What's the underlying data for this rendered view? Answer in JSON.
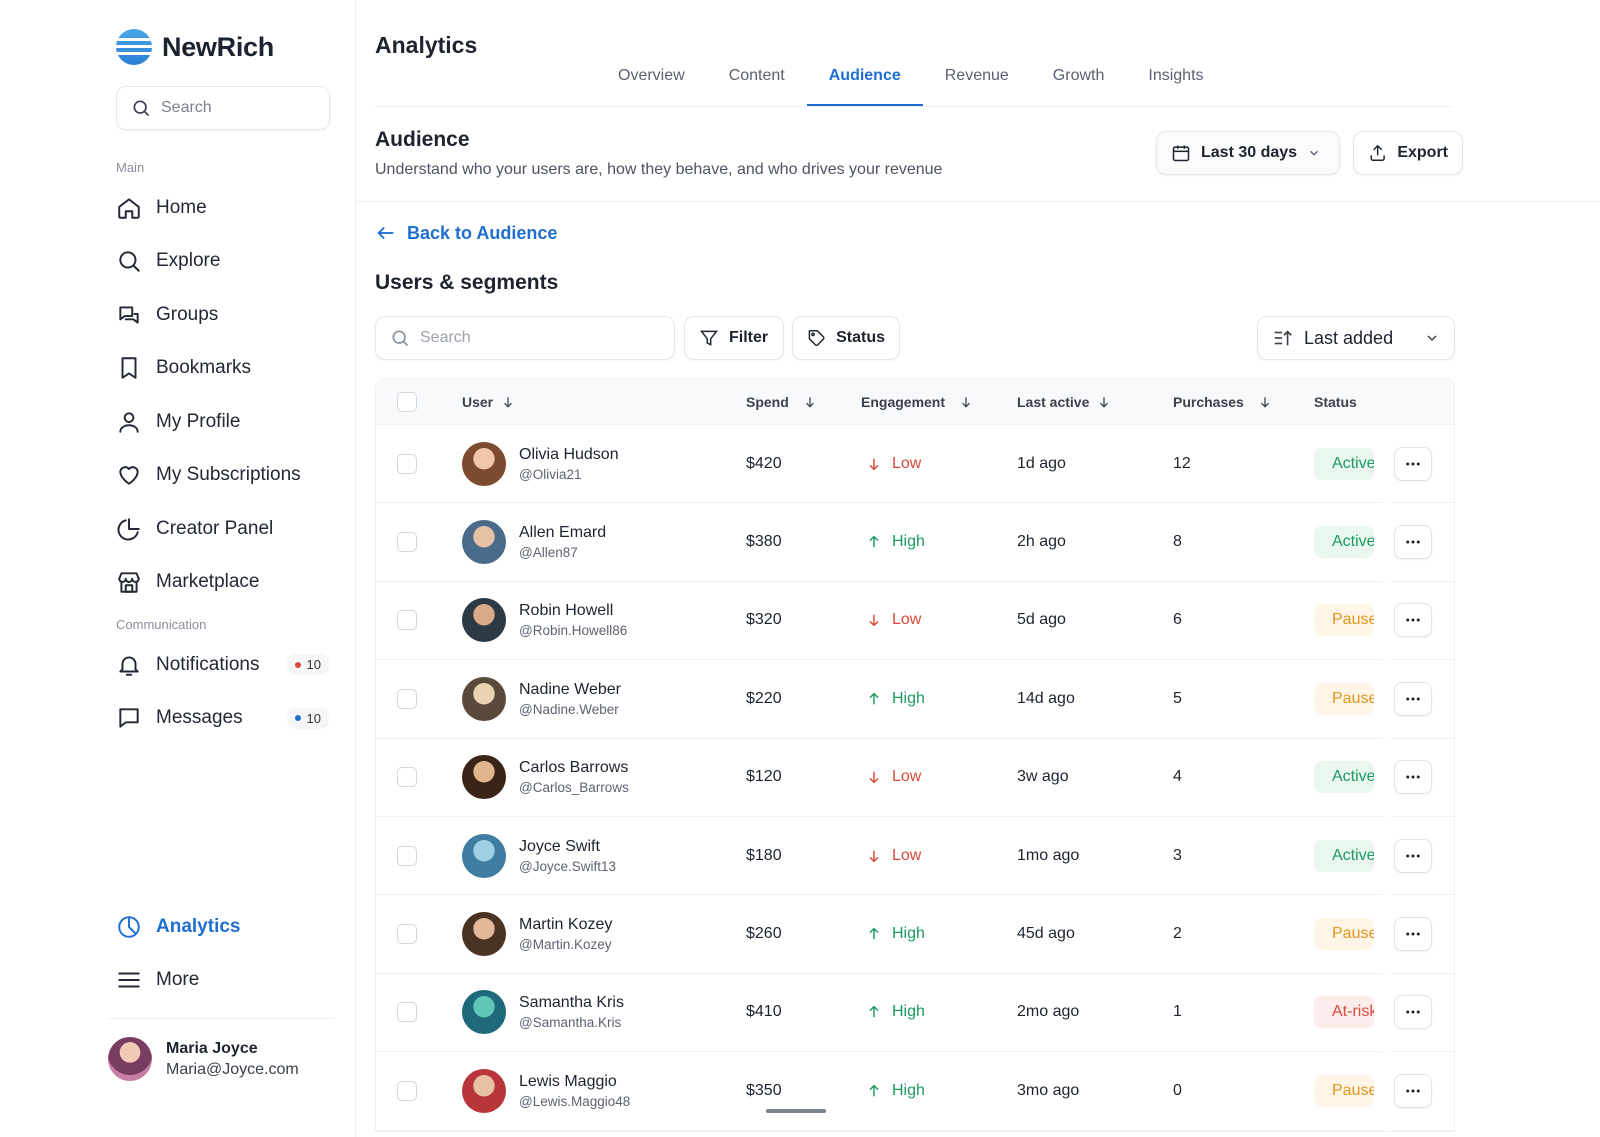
{
  "brand": {
    "name": "NewRich"
  },
  "sidebar": {
    "search_placeholder": "Search",
    "main_label": "Main",
    "main_items": [
      {
        "label": "Home",
        "icon": "home-icon"
      },
      {
        "label": "Explore",
        "icon": "search-icon"
      },
      {
        "label": "Groups",
        "icon": "chat-bubbles-icon"
      },
      {
        "label": "Bookmarks",
        "icon": "bookmark-icon"
      },
      {
        "label": "My Profile",
        "icon": "user-icon"
      },
      {
        "label": "My Subscriptions",
        "icon": "heart-icon"
      },
      {
        "label": "Creator Panel",
        "icon": "pie-chart-icon"
      },
      {
        "label": "Marketplace",
        "icon": "store-icon"
      }
    ],
    "comm_label": "Communication",
    "comm_items": [
      {
        "label": "Notifications",
        "icon": "bell-icon",
        "badge": "10",
        "badge_color": "#d84a3a"
      },
      {
        "label": "Messages",
        "icon": "message-icon",
        "badge": "10",
        "badge_color": "#1f6fd1"
      }
    ],
    "bottom_items": [
      {
        "label": "Analytics",
        "icon": "analytics-icon",
        "active": true
      },
      {
        "label": "More",
        "icon": "menu-icon"
      }
    ],
    "user": {
      "name": "Maria Joyce",
      "email": "Maria@Joyce.com"
    }
  },
  "header": {
    "title": "Analytics",
    "tabs": [
      "Overview",
      "Content",
      "Audience",
      "Revenue",
      "Growth",
      "Insights"
    ],
    "active_tab": "Audience",
    "section_title": "Audience",
    "section_desc": "Understand who your users are, how they behave, and who drives your revenue",
    "range_label": "Last 30 days",
    "export_label": "Export"
  },
  "content": {
    "back_label": "Back to Audience",
    "title": "Users & segments",
    "search_placeholder": "Search",
    "filter_label": "Filter",
    "status_label": "Status",
    "sort_label": "Last added"
  },
  "table": {
    "columns": {
      "user": "User",
      "spend": "Spend",
      "engagement": "Engagement",
      "last_active": "Last active",
      "purchases": "Purchases",
      "status": "Status"
    },
    "rows": [
      {
        "name": "Olivia Hudson",
        "handle": "@Olivia21",
        "spend": "$420",
        "engagement": "Low",
        "last_active": "1d ago",
        "purchases": "12",
        "status": "Active",
        "status_kind": "active",
        "avatar_colors": [
          "#f0c7a8",
          "#7b4a2f"
        ]
      },
      {
        "name": "Allen Emard",
        "handle": "@Allen87",
        "spend": "$380",
        "engagement": "High",
        "last_active": "2h ago",
        "purchases": "8",
        "status": "Active",
        "status_kind": "active",
        "avatar_colors": [
          "#e6c3a5",
          "#4a6b8a"
        ]
      },
      {
        "name": "Robin Howell",
        "handle": "@Robin.Howell86",
        "spend": "$320",
        "engagement": "Low",
        "last_active": "5d ago",
        "purchases": "6",
        "status": "Paused",
        "status_kind": "paused",
        "avatar_colors": [
          "#d9a98a",
          "#2b3a45"
        ]
      },
      {
        "name": "Nadine Weber",
        "handle": "@Nadine.Weber",
        "spend": "$220",
        "engagement": "High",
        "last_active": "14d ago",
        "purchases": "5",
        "status": "Paused",
        "status_kind": "paused",
        "avatar_colors": [
          "#e9d3b2",
          "#5a4a3c"
        ]
      },
      {
        "name": "Carlos Barrows",
        "handle": "@Carlos_Barrows",
        "spend": "$120",
        "engagement": "Low",
        "last_active": "3w ago",
        "purchases": "4",
        "status": "Active",
        "status_kind": "active",
        "avatar_colors": [
          "#e0b48c",
          "#3a2418"
        ]
      },
      {
        "name": "Joyce Swift",
        "handle": "@Joyce.Swift13",
        "spend": "$180",
        "engagement": "Low",
        "last_active": "1mo ago",
        "purchases": "3",
        "status": "Active",
        "status_kind": "active",
        "avatar_colors": [
          "#9fd0e6",
          "#3f7ea0"
        ]
      },
      {
        "name": "Martin Kozey",
        "handle": "@Martin.Kozey",
        "spend": "$260",
        "engagement": "High",
        "last_active": "45d ago",
        "purchases": "2",
        "status": "Paused",
        "status_kind": "paused",
        "avatar_colors": [
          "#e3b898",
          "#4b3323"
        ]
      },
      {
        "name": "Samantha Kris",
        "handle": "@Samantha.Kris",
        "spend": "$410",
        "engagement": "High",
        "last_active": "2mo ago",
        "purchases": "1",
        "status": "At-risk",
        "status_kind": "risk",
        "avatar_colors": [
          "#5fc6b8",
          "#1f6a7a"
        ]
      },
      {
        "name": "Lewis Maggio",
        "handle": "@Lewis.Maggio48",
        "spend": "$350",
        "engagement": "High",
        "last_active": "3mo ago",
        "purchases": "0",
        "status": "Paused",
        "status_kind": "paused",
        "avatar_colors": [
          "#e8c0a4",
          "#b8353a"
        ]
      }
    ]
  },
  "colors": {
    "accent": "#1f6fd1",
    "low": "#d84a3a",
    "high": "#1b9a5e",
    "paused": "#e2951f"
  }
}
